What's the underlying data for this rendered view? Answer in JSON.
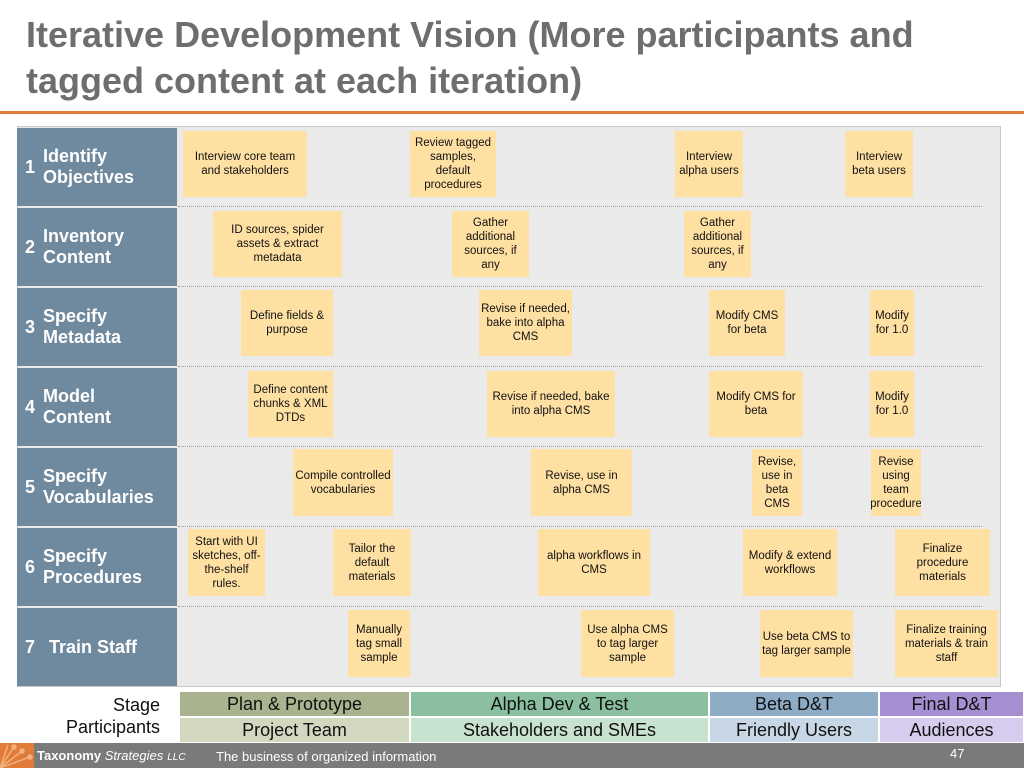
{
  "title": "Iterative Development Vision (More participants and tagged content at each iteration)",
  "rows": [
    {
      "num": "1",
      "label": "Identify Objectives"
    },
    {
      "num": "2",
      "label": "Inventory Content"
    },
    {
      "num": "3",
      "label": "Specify Metadata"
    },
    {
      "num": "4",
      "label": "Model Content"
    },
    {
      "num": "5",
      "label": "Specify Vocabularies"
    },
    {
      "num": "6",
      "label": "Specify Procedures"
    },
    {
      "num": "7",
      "label": "Train Staff"
    }
  ],
  "notes": {
    "r1": [
      "Interview core team and stakeholders",
      "Review tagged samples, default procedures",
      "Interview alpha users",
      "Interview beta users"
    ],
    "r2": [
      "ID sources, spider assets & extract metadata",
      "Gather additional sources, if any",
      "Gather additional sources, if any"
    ],
    "r3": [
      "Define fields & purpose",
      "Revise if needed, bake into alpha CMS",
      "Modify CMS for beta",
      "Modify for 1.0"
    ],
    "r4": [
      "Define content chunks & XML DTDs",
      "Revise if needed, bake into alpha CMS",
      "Modify CMS for beta",
      "Modify for 1.0"
    ],
    "r5": [
      "Compile controlled vocabularies",
      "Revise, use in alpha CMS",
      "Revise, use in beta CMS",
      "Revise using team procedure"
    ],
    "r6": [
      "Start with UI sketches, off-the-shelf rules.",
      "Tailor the default materials",
      "alpha workflows in CMS",
      "Modify & extend workflows",
      "Finalize procedure materials"
    ],
    "r7": [
      "Manually tag small sample",
      "Use alpha CMS to tag larger sample",
      "Use beta CMS to tag larger sample",
      "Finalize training materials & train staff"
    ]
  },
  "legend": {
    "stage_label": "Stage",
    "participants_label": "Participants",
    "stages": [
      "Plan & Prototype",
      "Alpha Dev & Test",
      "Beta D&T",
      "Final D&T"
    ],
    "participants": [
      "Project Team",
      "Stakeholders and SMEs",
      "Friendly Users",
      "Audiences"
    ]
  },
  "colors": {
    "stage_bg": [
      "#a9b38f",
      "#8ac0a0",
      "#8facc7",
      "#a58fd0"
    ],
    "participant_bg": [
      "#d2d8bf",
      "#c7e2cf",
      "#c8d7e6",
      "#d6cdee"
    ]
  },
  "footer": {
    "brand_bold": "Taxonomy",
    "brand_italic": "Strategies",
    "brand_suffix": "LLC",
    "tagline": "The business of organized information",
    "page_number": "47"
  }
}
